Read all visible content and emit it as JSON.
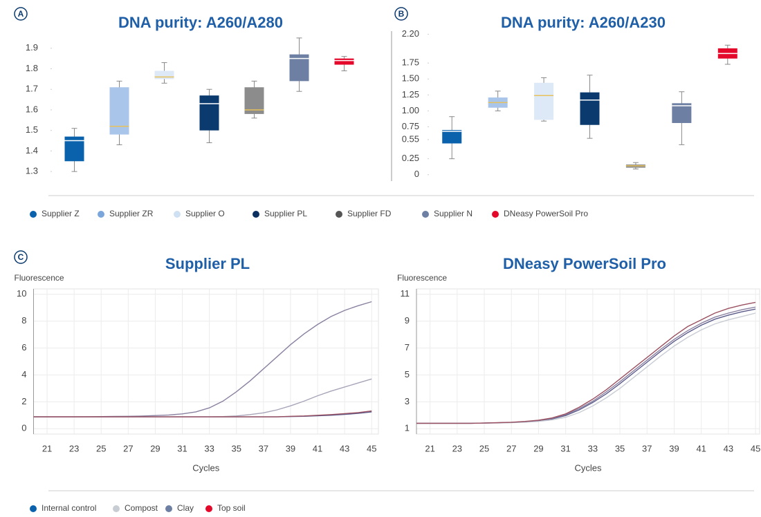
{
  "panel_labels": [
    "A",
    "B",
    "C"
  ],
  "legend_top": [
    {
      "name": "Supplier Z",
      "color": "#0a62ad"
    },
    {
      "name": "Supplier ZR",
      "color": "#7aa6dc"
    },
    {
      "name": "Supplier O",
      "color": "#cfe0f3"
    },
    {
      "name": "Supplier PL",
      "color": "#0b2f5e"
    },
    {
      "name": "Supplier FD",
      "color": "#555555"
    },
    {
      "name": "Supplier N",
      "color": "#6d7fa3"
    },
    {
      "name": "DNeasy PowerSoil Pro",
      "color": "#e4082b"
    }
  ],
  "legend_bottom": [
    {
      "name": "Internal control",
      "color": "#0a62ad"
    },
    {
      "name": "Compost",
      "color": "#c8ccd3"
    },
    {
      "name": "Clay",
      "color": "#6d7fa3"
    },
    {
      "name": "Top soil",
      "color": "#e4082b"
    }
  ],
  "chart_data": [
    {
      "type": "box",
      "title": "DNA purity: A260/A280",
      "ylim": [
        1.25,
        1.98
      ],
      "yticks": [
        1.3,
        1.4,
        1.5,
        1.6,
        1.7,
        1.8,
        1.9
      ],
      "boxes": [
        {
          "color": "#0a62ad",
          "median_color": "#ffffff",
          "min": 1.3,
          "q1": 1.35,
          "median": 1.45,
          "q3": 1.47,
          "max": 1.51
        },
        {
          "color": "#a9c6ea",
          "median_color": "#e8c15a",
          "min": 1.43,
          "q1": 1.48,
          "median": 1.52,
          "q3": 1.71,
          "max": 1.74
        },
        {
          "color": "#dde9f6",
          "median_color": "#e8c15a",
          "min": 1.73,
          "q1": 1.75,
          "median": 1.76,
          "q3": 1.79,
          "max": 1.83
        },
        {
          "color": "#0b3a6e",
          "median_color": "#ffffff",
          "min": 1.44,
          "q1": 1.5,
          "median": 1.63,
          "q3": 1.67,
          "max": 1.7
        },
        {
          "color": "#8c8c8c",
          "median_color": "#e8c15a",
          "min": 1.56,
          "q1": 1.58,
          "median": 1.6,
          "q3": 1.71,
          "max": 1.74
        },
        {
          "color": "#6d7fa3",
          "median_color": "#ffffff",
          "min": 1.69,
          "q1": 1.74,
          "median": 1.85,
          "q3": 1.87,
          "max": 1.95
        },
        {
          "color": "#e4082b",
          "median_color": "#ffffff",
          "min": 1.79,
          "q1": 1.82,
          "median": 1.84,
          "q3": 1.85,
          "max": 1.86
        }
      ]
    },
    {
      "type": "box",
      "title": "DNA purity: A260/A230",
      "ylim": [
        -0.1,
        2.25
      ],
      "yticks": [
        {
          "value": 2.2,
          "label": "2.20"
        },
        {
          "value": 1.75,
          "label": "1.75"
        },
        {
          "value": 1.5,
          "label": "1.50"
        },
        {
          "value": 1.25,
          "label": "1.25"
        },
        {
          "value": 1.0,
          "label": "1.00"
        },
        {
          "value": 0.75,
          "label": "0.75"
        },
        0.55,
        0.25,
        0
      ],
      "boxes": [
        {
          "color": "#0a62ad",
          "median_color": "#ffffff",
          "min": 0.25,
          "q1": 0.49,
          "median": 0.68,
          "q3": 0.7,
          "max": 0.91
        },
        {
          "color": "#a9c6ea",
          "median_color": "#e8c15a",
          "min": 1.0,
          "q1": 1.05,
          "median": 1.13,
          "q3": 1.21,
          "max": 1.31
        },
        {
          "color": "#dde9f6",
          "median_color": "#e8c15a",
          "min": 0.84,
          "q1": 0.86,
          "median": 1.24,
          "q3": 1.44,
          "max": 1.52
        },
        {
          "color": "#0b3a6e",
          "median_color": "#ffffff",
          "min": 0.57,
          "q1": 0.78,
          "median": 1.17,
          "q3": 1.29,
          "max": 1.56
        },
        {
          "color": "#8c8c8c",
          "median_color": "#e8c15a",
          "min": 0.09,
          "q1": 0.11,
          "median": 0.14,
          "q3": 0.16,
          "max": 0.19
        },
        {
          "color": "#6d7fa3",
          "median_color": "#ffffff",
          "min": 0.47,
          "q1": 0.81,
          "median": 1.08,
          "q3": 1.12,
          "max": 1.3
        },
        {
          "color": "#e4082b",
          "median_color": "#ffffff",
          "min": 1.73,
          "q1": 1.82,
          "median": 1.9,
          "q3": 1.98,
          "max": 2.03
        }
      ]
    },
    {
      "type": "line",
      "title": "Supplier PL",
      "ylabel": "Fluorescence",
      "xlabel": "Cycles",
      "xlim": [
        20,
        45.5
      ],
      "ylim": [
        -0.4,
        10.4
      ],
      "xticks": [
        21,
        23,
        25,
        27,
        29,
        31,
        33,
        35,
        37,
        39,
        41,
        43,
        45
      ],
      "yticks": [
        0,
        2,
        4,
        6,
        8,
        10
      ],
      "grid": true,
      "x": [
        20,
        21,
        22,
        23,
        24,
        25,
        26,
        27,
        28,
        29,
        30,
        31,
        32,
        33,
        34,
        35,
        36,
        37,
        38,
        39,
        40,
        41,
        42,
        43,
        44,
        45
      ],
      "series": [
        {
          "color": "#5a5a8a",
          "values": [
            0.88,
            0.88,
            0.88,
            0.88,
            0.88,
            0.88,
            0.88,
            0.88,
            0.88,
            0.88,
            0.88,
            0.88,
            0.88,
            0.88,
            0.88,
            0.88,
            0.88,
            0.88,
            0.88,
            0.9,
            0.92,
            0.96,
            1.0,
            1.06,
            1.14,
            1.25
          ]
        },
        {
          "color": "#a8a4b8",
          "values": [
            0.88,
            0.88,
            0.88,
            0.88,
            0.88,
            0.88,
            0.88,
            0.88,
            0.88,
            0.88,
            0.88,
            0.88,
            0.88,
            0.88,
            0.9,
            0.95,
            1.05,
            1.18,
            1.4,
            1.7,
            2.05,
            2.45,
            2.8,
            3.1,
            3.4,
            3.7
          ]
        },
        {
          "color": "#8a80a0",
          "values": [
            0.88,
            0.88,
            0.88,
            0.88,
            0.89,
            0.9,
            0.91,
            0.92,
            0.94,
            0.98,
            1.02,
            1.1,
            1.25,
            1.55,
            2.05,
            2.75,
            3.55,
            4.45,
            5.35,
            6.25,
            7.05,
            7.75,
            8.35,
            8.8,
            9.15,
            9.45
          ]
        },
        {
          "color": "#9a5060",
          "values": [
            0.88,
            0.88,
            0.88,
            0.88,
            0.88,
            0.88,
            0.88,
            0.88,
            0.88,
            0.88,
            0.88,
            0.88,
            0.88,
            0.88,
            0.88,
            0.88,
            0.88,
            0.88,
            0.88,
            0.92,
            0.95,
            1.0,
            1.05,
            1.12,
            1.2,
            1.32
          ]
        }
      ]
    },
    {
      "type": "line",
      "title": "DNeasy PowerSoil Pro",
      "ylabel": "Fluorescence",
      "xlabel": "Cycles",
      "xlim": [
        20,
        45.3
      ],
      "ylim": [
        0.6,
        11.4
      ],
      "xticks": [
        21,
        23,
        25,
        27,
        29,
        31,
        33,
        35,
        37,
        39,
        41,
        43,
        45
      ],
      "yticks": [
        1,
        3,
        5,
        7,
        9,
        11
      ],
      "grid": true,
      "x": [
        20,
        21,
        22,
        23,
        24,
        25,
        26,
        27,
        28,
        29,
        30,
        31,
        32,
        33,
        34,
        35,
        36,
        37,
        38,
        39,
        40,
        41,
        42,
        43,
        44,
        45
      ],
      "series": [
        {
          "color": "#5a5a8a",
          "values": [
            1.4,
            1.4,
            1.4,
            1.4,
            1.4,
            1.42,
            1.44,
            1.46,
            1.5,
            1.58,
            1.72,
            1.98,
            2.4,
            2.95,
            3.6,
            4.35,
            5.15,
            5.95,
            6.75,
            7.5,
            8.15,
            8.7,
            9.15,
            9.45,
            9.7,
            9.9
          ]
        },
        {
          "color": "#c8ccd3",
          "values": [
            1.4,
            1.4,
            1.4,
            1.4,
            1.4,
            1.41,
            1.43,
            1.45,
            1.48,
            1.54,
            1.65,
            1.85,
            2.2,
            2.7,
            3.3,
            4.0,
            4.8,
            5.6,
            6.4,
            7.15,
            7.8,
            8.35,
            8.8,
            9.1,
            9.35,
            9.6
          ]
        },
        {
          "color": "#8a80a0",
          "values": [
            1.4,
            1.4,
            1.4,
            1.4,
            1.4,
            1.42,
            1.44,
            1.47,
            1.52,
            1.6,
            1.76,
            2.05,
            2.5,
            3.05,
            3.75,
            4.5,
            5.3,
            6.1,
            6.9,
            7.65,
            8.3,
            8.85,
            9.3,
            9.6,
            9.85,
            10.05
          ]
        },
        {
          "color": "#9a5060",
          "values": [
            1.4,
            1.4,
            1.4,
            1.4,
            1.4,
            1.42,
            1.45,
            1.48,
            1.54,
            1.63,
            1.8,
            2.1,
            2.6,
            3.2,
            3.9,
            4.7,
            5.5,
            6.3,
            7.1,
            7.9,
            8.6,
            9.1,
            9.6,
            9.95,
            10.2,
            10.4
          ]
        }
      ]
    }
  ]
}
